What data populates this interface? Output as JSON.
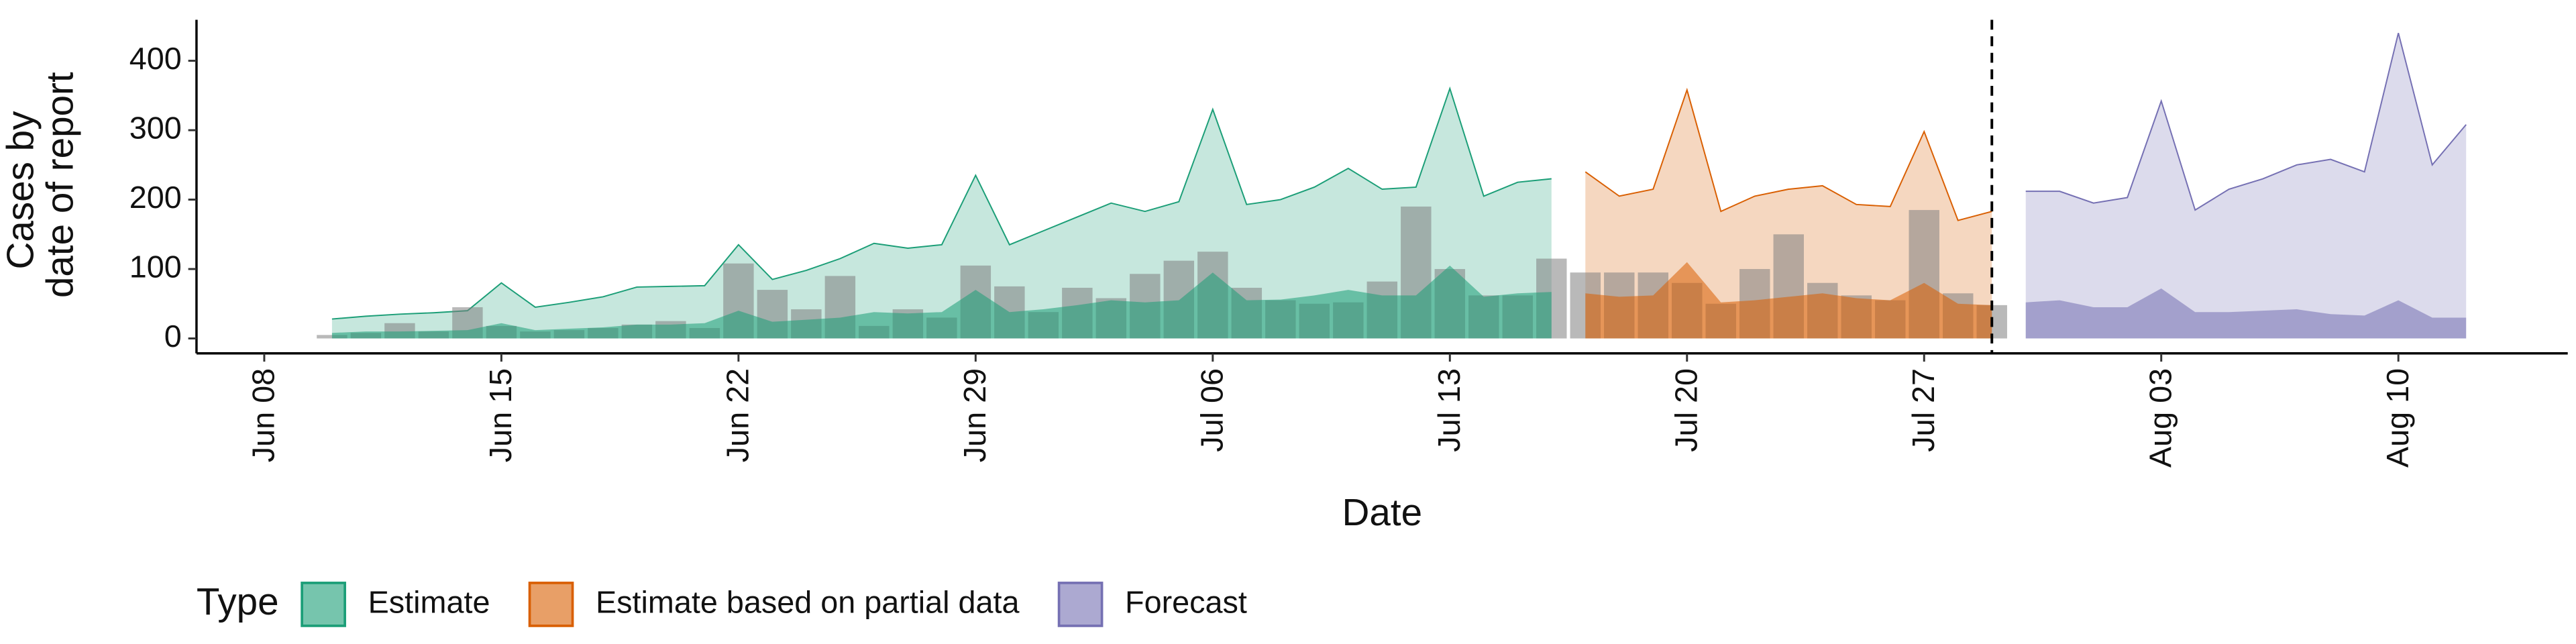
{
  "chart_data": {
    "type": "ribbon",
    "xlabel": "Date",
    "ylabel": [
      "Cases by",
      "date of report"
    ],
    "xlim": [
      "Jun 06",
      "Aug 15"
    ],
    "xticks": [
      "Jun 08",
      "Jun 15",
      "Jun 22",
      "Jun 29",
      "Jul 06",
      "Jul 13",
      "Jul 20",
      "Jul 27",
      "Aug 03",
      "Aug 10"
    ],
    "ylim": [
      -21.5,
      459
    ],
    "yticks": [
      0,
      100,
      200,
      300,
      400
    ],
    "grid": false,
    "cutoff": "Jul 29",
    "legend_title": "Type",
    "legend_position": "bottom",
    "reported": {
      "color": "#808080",
      "x": [
        "Jun 10",
        "Jun 11",
        "Jun 12",
        "Jun 13",
        "Jun 14",
        "Jun 15",
        "Jun 16",
        "Jun 17",
        "Jun 18",
        "Jun 19",
        "Jun 20",
        "Jun 21",
        "Jun 22",
        "Jun 23",
        "Jun 24",
        "Jun 25",
        "Jun 26",
        "Jun 27",
        "Jun 28",
        "Jun 29",
        "Jun 30",
        "Jul 01",
        "Jul 02",
        "Jul 03",
        "Jul 04",
        "Jul 05",
        "Jul 06",
        "Jul 07",
        "Jul 08",
        "Jul 09",
        "Jul 10",
        "Jul 11",
        "Jul 12",
        "Jul 13",
        "Jul 14",
        "Jul 15",
        "Jul 16",
        "Jul 17",
        "Jul 18",
        "Jul 19",
        "Jul 20",
        "Jul 21",
        "Jul 22",
        "Jul 23",
        "Jul 24",
        "Jul 25",
        "Jul 26",
        "Jul 27",
        "Jul 28",
        "Jul 29"
      ],
      "values": [
        5,
        8,
        22,
        10,
        45,
        18,
        10,
        12,
        15,
        20,
        25,
        15,
        108,
        70,
        42,
        90,
        18,
        42,
        30,
        105,
        75,
        38,
        73,
        58,
        93,
        112,
        125,
        73,
        55,
        50,
        52,
        82,
        190,
        100,
        62,
        62,
        115,
        95,
        95,
        95,
        80,
        50,
        100,
        150,
        80,
        62,
        55,
        185,
        65,
        48
      ]
    },
    "series": [
      {
        "name": "Estimate",
        "color": "#1b9e77",
        "x": [
          "Jun 10",
          "Jun 11",
          "Jun 12",
          "Jun 13",
          "Jun 14",
          "Jun 15",
          "Jun 16",
          "Jun 17",
          "Jun 18",
          "Jun 19",
          "Jun 20",
          "Jun 21",
          "Jun 22",
          "Jun 23",
          "Jun 24",
          "Jun 25",
          "Jun 26",
          "Jun 27",
          "Jun 28",
          "Jun 29",
          "Jun 30",
          "Jul 01",
          "Jul 02",
          "Jul 03",
          "Jul 04",
          "Jul 05",
          "Jul 06",
          "Jul 07",
          "Jul 08",
          "Jul 09",
          "Jul 10",
          "Jul 11",
          "Jul 12",
          "Jul 13",
          "Jul 14",
          "Jul 15",
          "Jul 16"
        ],
        "outer": [
          28,
          32,
          35,
          37,
          40,
          80,
          45,
          52,
          60,
          74,
          75,
          76,
          135,
          85,
          98,
          115,
          137,
          130,
          135,
          235,
          135,
          155,
          175,
          195,
          183,
          197,
          330,
          193,
          200,
          218,
          245,
          215,
          218,
          360,
          205,
          225,
          230
        ],
        "inner": [
          8,
          10,
          10,
          11,
          12,
          22,
          12,
          14,
          16,
          20,
          20,
          22,
          40,
          24,
          27,
          30,
          38,
          36,
          38,
          70,
          38,
          42,
          48,
          55,
          52,
          55,
          95,
          55,
          56,
          62,
          70,
          62,
          62,
          105,
          60,
          65,
          67
        ]
      },
      {
        "name": "Estimate based on partial data",
        "color": "#d95f02",
        "x": [
          "Jul 17",
          "Jul 18",
          "Jul 19",
          "Jul 20",
          "Jul 21",
          "Jul 22",
          "Jul 23",
          "Jul 24",
          "Jul 25",
          "Jul 26",
          "Jul 27",
          "Jul 28",
          "Jul 29"
        ],
        "outer": [
          240,
          205,
          215,
          358,
          183,
          205,
          215,
          220,
          193,
          190,
          298,
          170,
          183
        ],
        "inner": [
          65,
          60,
          62,
          110,
          52,
          55,
          60,
          65,
          58,
          55,
          80,
          50,
          48
        ]
      },
      {
        "name": "Forecast",
        "color": "#7570b3",
        "x": [
          "Jul 30",
          "Jul 31",
          "Aug 01",
          "Aug 02",
          "Aug 03",
          "Aug 04",
          "Aug 05",
          "Aug 06",
          "Aug 07",
          "Aug 08",
          "Aug 09",
          "Aug 10",
          "Aug 11",
          "Aug 12"
        ],
        "outer": [
          212,
          212,
          195,
          203,
          342,
          185,
          215,
          230,
          250,
          258,
          240,
          440,
          250,
          308
        ],
        "inner": [
          52,
          55,
          45,
          45,
          72,
          38,
          38,
          40,
          42,
          35,
          33,
          55,
          30,
          30
        ]
      }
    ]
  }
}
